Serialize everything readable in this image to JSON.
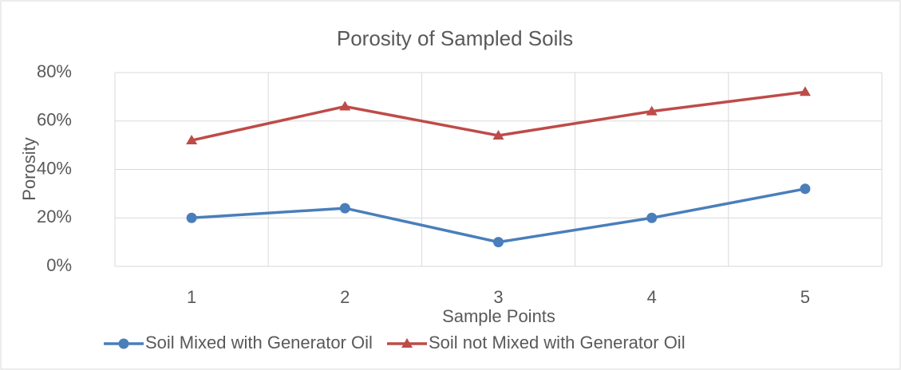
{
  "chart_data": {
    "type": "line",
    "title": "Porosity of Sampled Soils",
    "x_label": "Sample Points",
    "y_label": "Porosity",
    "categories": [
      "1",
      "2",
      "3",
      "4",
      "5"
    ],
    "series": [
      {
        "name": "Soil Mixed with Generator Oil",
        "color": "#4a7ebb",
        "marker": "circle",
        "values": [
          20,
          24,
          10,
          20,
          32
        ]
      },
      {
        "name": "Soil not Mixed with Generator Oil",
        "color": "#be4b48",
        "marker": "triangle",
        "values": [
          52,
          66,
          54,
          64,
          72
        ]
      }
    ],
    "ylim": [
      0,
      80
    ],
    "yticks": [
      {
        "value": 0,
        "label": "0%"
      },
      {
        "value": 20,
        "label": "20%"
      },
      {
        "value": 40,
        "label": "40%"
      },
      {
        "value": 60,
        "label": "60%"
      },
      {
        "value": 80,
        "label": "80%"
      }
    ],
    "grid": true,
    "legend": "bottom"
  }
}
